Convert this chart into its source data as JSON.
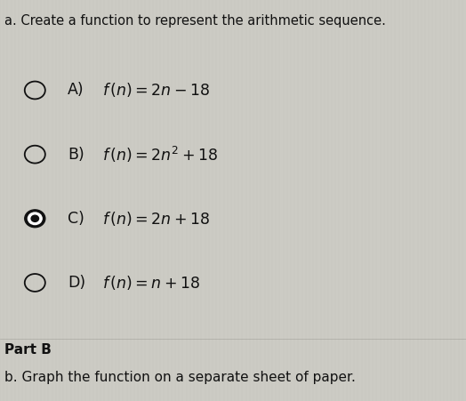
{
  "title": "a. Create a function to represent the arithmetic sequence.",
  "options": [
    {
      "label": "A)",
      "selected": false,
      "formula_latex": "$f\\,(n) = 2n - 18$"
    },
    {
      "label": "B)",
      "selected": false,
      "formula_latex": "$f\\,(n) = 2n^2 + 18$"
    },
    {
      "label": "C)",
      "selected": true,
      "formula_latex": "$f\\,(n) = 2n + 18$"
    },
    {
      "label": "D)",
      "selected": false,
      "formula_latex": "$f\\,(n) = n + 18$"
    }
  ],
  "part_b_label": "Part B",
  "part_b_text": "b. Graph the function on a separate sheet of paper.",
  "bg_color": "#cccbc4",
  "text_color": "#111111",
  "title_fontsize": 10.5,
  "option_fontsize": 12.5,
  "part_label_fontsize": 11,
  "part_text_fontsize": 11
}
